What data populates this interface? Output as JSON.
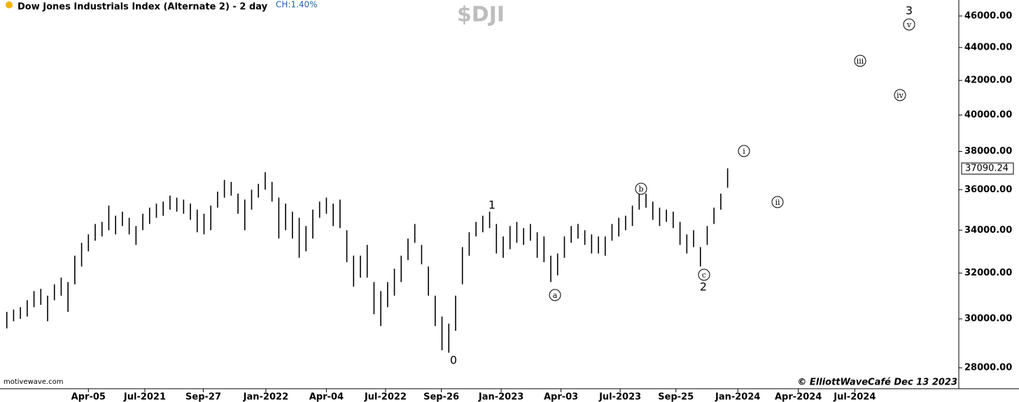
{
  "chart_data": {
    "type": "ohlc",
    "title": "Dow Jones Industrials Index (Alternate 2) - 2 day",
    "change": "CH:1.40%",
    "symbol": "$DJI",
    "source": "motivewave.com",
    "credit": "© ElliottWaveCafé Dec 13 2023",
    "last_price": 37090.24,
    "log_scale": true,
    "color": "#000000",
    "high": [
      30300,
      30400,
      30500,
      30800,
      31200,
      31300,
      31000,
      31500,
      31800,
      31600,
      32800,
      33400,
      33800,
      34300,
      34400,
      35200,
      34700,
      34900,
      34600,
      34200,
      34800,
      35100,
      35300,
      35400,
      35700,
      35600,
      35500,
      35300,
      35000,
      34800,
      35200,
      35900,
      36500,
      36400,
      35800,
      35500,
      36000,
      36300,
      36900,
      36400,
      35600,
      35300,
      34900,
      34600,
      34200,
      35000,
      35400,
      35600,
      35300,
      35500,
      34000,
      32800,
      32800,
      33300,
      31600,
      31200,
      31600,
      32200,
      32800,
      33600,
      34300,
      33300,
      32300,
      31000,
      30100,
      29800,
      31000,
      33200,
      33900,
      34400,
      34700,
      34900,
      34300,
      33700,
      34200,
      34400,
      34100,
      34300,
      33900,
      33700,
      32800,
      32900,
      33700,
      34200,
      34300,
      34000,
      33800,
      33700,
      33700,
      34300,
      34600,
      34700,
      35200,
      35800,
      35800,
      35400,
      35100,
      35000,
      34900,
      34400,
      33800,
      34000,
      33200,
      34200,
      35100,
      35800,
      37100
    ],
    "low": [
      29600,
      29900,
      30000,
      30100,
      30500,
      30600,
      29900,
      30800,
      31000,
      30300,
      31500,
      32300,
      33000,
      33500,
      33700,
      34000,
      33800,
      34200,
      33800,
      33300,
      34000,
      34300,
      34600,
      34700,
      35000,
      34900,
      34800,
      34500,
      33900,
      33800,
      34000,
      35100,
      35600,
      35700,
      34800,
      34000,
      35000,
      35600,
      36000,
      35400,
      33600,
      34000,
      33600,
      32700,
      33000,
      33600,
      34600,
      34800,
      34200,
      34100,
      32500,
      31400,
      31800,
      31800,
      30200,
      29700,
      30500,
      31000,
      31600,
      32600,
      33400,
      32400,
      31000,
      29700,
      28700,
      28600,
      29500,
      31500,
      32800,
      33700,
      33900,
      34100,
      32900,
      32700,
      33100,
      33400,
      33300,
      33500,
      32700,
      32500,
      31600,
      31900,
      32700,
      33400,
      33600,
      33300,
      32900,
      32900,
      32800,
      33500,
      33700,
      34000,
      34200,
      35000,
      35100,
      34500,
      34200,
      34400,
      34100,
      33300,
      32900,
      33200,
      32300,
      33300,
      34300,
      35000,
      36100
    ],
    "xlim": [
      -1,
      140
    ],
    "xticks": [
      {
        "value": 12,
        "label": "Apr-05"
      },
      {
        "value": 20.3,
        "label": "Jul-2021"
      },
      {
        "value": 28.9,
        "label": "Sep-27"
      },
      {
        "value": 38.1,
        "label": "Jan-2022"
      },
      {
        "value": 47,
        "label": "Apr-04"
      },
      {
        "value": 55.7,
        "label": "Jul-2022"
      },
      {
        "value": 63.9,
        "label": "Sep-26"
      },
      {
        "value": 72.7,
        "label": "Jan-2023"
      },
      {
        "value": 81.5,
        "label": "Apr-03"
      },
      {
        "value": 90.2,
        "label": "Jul-2023"
      },
      {
        "value": 98.4,
        "label": "Sep-25"
      },
      {
        "value": 107.5,
        "label": "Jan-2024"
      },
      {
        "value": 116.4,
        "label": "Apr-2024"
      },
      {
        "value": 124.7,
        "label": "Jul-2024"
      }
    ],
    "ylim": [
      27400,
      47050
    ],
    "yticks": [
      {
        "value": 28000,
        "label": "28000.00"
      },
      {
        "value": 30000,
        "label": "30000.00"
      },
      {
        "value": 32000,
        "label": "32000.00"
      },
      {
        "value": 34000,
        "label": "34000.00"
      },
      {
        "value": 36000,
        "label": "36000.00"
      },
      {
        "value": 38000,
        "label": "38000.00"
      },
      {
        "value": 40000,
        "label": "40000.00"
      },
      {
        "value": 42000,
        "label": "42000.00"
      },
      {
        "value": 44000,
        "label": "44000.00"
      },
      {
        "value": 46000,
        "label": "46000.00"
      }
    ],
    "annotations": [
      {
        "text": "0",
        "circled": false
      },
      {
        "text": "1",
        "circled": false
      },
      {
        "text": "2",
        "circled": false
      },
      {
        "text": "3",
        "circled": false
      },
      {
        "text": "a",
        "circled": true
      },
      {
        "text": "b",
        "circled": true
      },
      {
        "text": "c",
        "circled": true
      },
      {
        "text": "i",
        "circled": true
      },
      {
        "text": "ii",
        "circled": true
      },
      {
        "text": "iii",
        "circled": true
      },
      {
        "text": "iv",
        "circled": true
      },
      {
        "text": "v",
        "circled": true
      }
    ]
  }
}
